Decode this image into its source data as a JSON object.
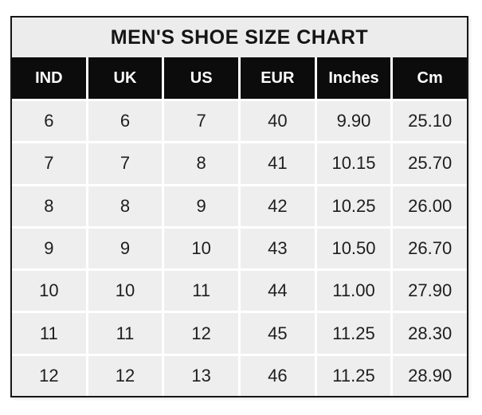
{
  "table": {
    "title": "MEN'S SHOE SIZE CHART",
    "columns": [
      "IND",
      "UK",
      "US",
      "EUR",
      "Inches",
      "Cm"
    ],
    "rows": [
      [
        "6",
        "6",
        "7",
        "40",
        "9.90",
        "25.10"
      ],
      [
        "7",
        "7",
        "8",
        "41",
        "10.15",
        "25.70"
      ],
      [
        "8",
        "8",
        "9",
        "42",
        "10.25",
        "26.00"
      ],
      [
        "9",
        "9",
        "10",
        "43",
        "10.50",
        "26.70"
      ],
      [
        "10",
        "10",
        "11",
        "44",
        "11.00",
        "27.90"
      ],
      [
        "11",
        "11",
        "12",
        "45",
        "11.25",
        "28.30"
      ],
      [
        "12",
        "12",
        "13",
        "46",
        "11.25",
        "28.90"
      ]
    ],
    "colors": {
      "header_bg": "#0c0c0c",
      "header_text": "#ffffff",
      "title_bg": "#edecec",
      "row_bg": "#efeeee",
      "separator": "#ffffff",
      "border": "#161616",
      "body_text": "#1e1e1e"
    }
  },
  "chart_data": {
    "type": "table",
    "title": "MEN'S SHOE SIZE CHART",
    "columns": [
      "IND",
      "UK",
      "US",
      "EUR",
      "Inches",
      "Cm"
    ],
    "rows": [
      [
        6,
        6,
        7,
        40,
        9.9,
        25.1
      ],
      [
        7,
        7,
        8,
        41,
        10.15,
        25.7
      ],
      [
        8,
        8,
        9,
        42,
        10.25,
        26.0
      ],
      [
        9,
        9,
        10,
        43,
        10.5,
        26.7
      ],
      [
        10,
        10,
        11,
        44,
        11.0,
        27.9
      ],
      [
        11,
        11,
        12,
        45,
        11.25,
        28.3
      ],
      [
        12,
        12,
        13,
        46,
        11.25,
        28.9
      ]
    ],
    "layout": {
      "header_style": "black-background-white-text",
      "body_style": "light-gray-cells-white-separators",
      "outer_border": "thick-black"
    }
  }
}
